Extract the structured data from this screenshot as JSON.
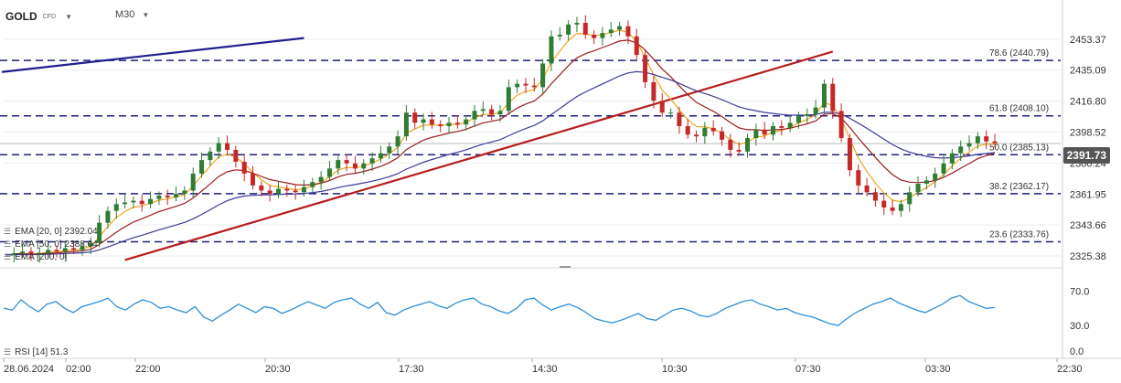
{
  "header": {
    "symbol": "GOLD",
    "instrument_type": "CFD",
    "timeframe": "M30"
  },
  "indicators": {
    "ema20": "EMA [20, 0] 2392.04",
    "ema50": "EMA [50, 0] 2388.04",
    "ema200": "EMA [200, 0]",
    "rsi": "RSI [14] 51.3"
  },
  "current_price": "2391.73",
  "colors": {
    "candle_up": "#2e7d32",
    "candle_down": "#c62828",
    "ema20": "#f2a51d",
    "ema50": "#9b1c1c",
    "ema200": "#3b3b9b",
    "fib_line": "#1f1f7a",
    "trend_up": "#1f1f8f",
    "trend_red": "#b71c1c",
    "rsi": "#2d8fd8",
    "price_box": "#555555"
  },
  "chart_data": {
    "type": "candlestick",
    "price_axis": {
      "ylim": [
        2320,
        2470
      ],
      "ticks": [
        "2453.37",
        "2435.09",
        "2416.80",
        "2398.52",
        "2380.24",
        "2361.95",
        "2343.66",
        "2325.38"
      ]
    },
    "time_axis": {
      "ticks": [
        "28.06.2024",
        "02:00",
        "22:00",
        "20:30",
        "17:30",
        "14:30",
        "10:30",
        "07:30",
        "03:30",
        "22:30"
      ]
    },
    "fibonacci": [
      {
        "label": "78.6 (2440.79)",
        "value": 2440.79
      },
      {
        "label": "61.8 (2408.10)",
        "value": 2408.1
      },
      {
        "label": "50.0 (2385.13)",
        "value": 2385.13
      },
      {
        "label": "38.2 (2362.17)",
        "value": 2362.17
      },
      {
        "label": "23.6 (2333.76)",
        "value": 2333.76
      }
    ],
    "close_series": [
      2326,
      2327,
      2328,
      2326,
      2327,
      2329,
      2328,
      2330,
      2329,
      2331,
      2333,
      2345,
      2352,
      2356,
      2357,
      2358,
      2356,
      2359,
      2361,
      2360,
      2362,
      2364,
      2374,
      2382,
      2387,
      2392,
      2388,
      2381,
      2374,
      2367,
      2364,
      2362,
      2365,
      2364,
      2363,
      2366,
      2369,
      2372,
      2377,
      2382,
      2380,
      2377,
      2380,
      2383,
      2386,
      2390,
      2396,
      2410,
      2404,
      2406,
      2403,
      2402,
      2404,
      2403,
      2406,
      2411,
      2412,
      2409,
      2411,
      2425,
      2427,
      2426,
      2425,
      2439,
      2455,
      2456,
      2462,
      2463,
      2456,
      2454,
      2457,
      2459,
      2461,
      2455,
      2444,
      2428,
      2417,
      2410,
      2410,
      2402,
      2397,
      2396,
      2401,
      2399,
      2394,
      2388,
      2387,
      2395,
      2400,
      2397,
      2402,
      2401,
      2404,
      2408,
      2409,
      2413,
      2427,
      2411,
      2395,
      2376,
      2367,
      2363,
      2358,
      2354,
      2352,
      2356,
      2363,
      2368,
      2370,
      2374,
      2380,
      2386,
      2390,
      2392,
      2396,
      2393,
      2392
    ],
    "trendlines": [
      {
        "name": "blue",
        "from": [
          0,
          2434.0
        ],
        "to": [
          35,
          2454.0
        ]
      },
      {
        "name": "red",
        "from": [
          14,
          2323.0
        ],
        "to": [
          97,
          2446.0
        ]
      }
    ],
    "rsi": {
      "ticks": [
        "70.0",
        "30.0",
        "0.0"
      ],
      "ylim": [
        0,
        90
      ],
      "values": [
        50,
        48,
        60,
        52,
        46,
        55,
        58,
        50,
        45,
        52,
        55,
        58,
        62,
        52,
        48,
        55,
        60,
        57,
        50,
        52,
        48,
        45,
        52,
        40,
        35,
        42,
        48,
        55,
        50,
        45,
        52,
        50,
        44,
        48,
        53,
        58,
        54,
        50,
        57,
        60,
        62,
        55,
        50,
        57,
        45,
        42,
        48,
        52,
        55,
        58,
        53,
        50,
        56,
        60,
        62,
        55,
        52,
        47,
        44,
        50,
        60,
        62,
        54,
        48,
        52,
        55,
        51,
        45,
        38,
        35,
        33,
        36,
        40,
        44,
        38,
        36,
        42,
        48,
        50,
        47,
        42,
        40,
        44,
        50,
        54,
        58,
        60,
        55,
        52,
        48,
        50,
        45,
        42,
        40,
        36,
        32,
        30,
        38,
        45,
        50,
        55,
        58,
        62,
        56,
        52,
        48,
        45,
        50,
        55,
        62,
        65,
        58,
        54,
        50,
        51
      ]
    }
  }
}
